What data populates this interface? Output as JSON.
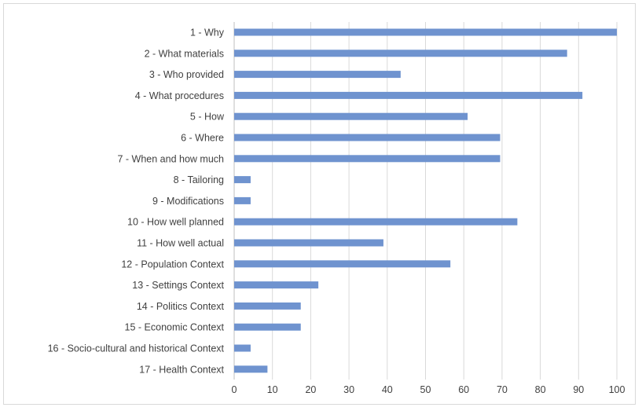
{
  "chart_data": {
    "type": "bar",
    "orientation": "horizontal",
    "categories": [
      "1 - Why",
      "2 - What materials",
      "3 - Who provided",
      "4 - What procedures",
      "5 - How",
      "6 - Where",
      "7 - When and how much",
      "8 - Tailoring",
      "9 - Modifications",
      "10 - How well planned",
      "11 - How well actual",
      "12 - Population Context",
      "13 - Settings Context",
      "14 - Politics Context",
      "15 - Economic Context",
      "16 - Socio-cultural and historical Context",
      "17 - Health Context"
    ],
    "values": [
      100,
      87,
      43.5,
      91,
      61,
      69.5,
      69.5,
      4.3,
      4.3,
      74,
      39,
      56.5,
      22,
      17.4,
      17.4,
      4.3,
      8.7
    ],
    "title": "",
    "xlabel": "",
    "ylabel": "",
    "xlim": [
      0,
      100
    ],
    "xticks": [
      0,
      10,
      20,
      30,
      40,
      50,
      60,
      70,
      80,
      90,
      100
    ],
    "grid": true,
    "legend": "none",
    "bar_color": "#6f93cf"
  }
}
